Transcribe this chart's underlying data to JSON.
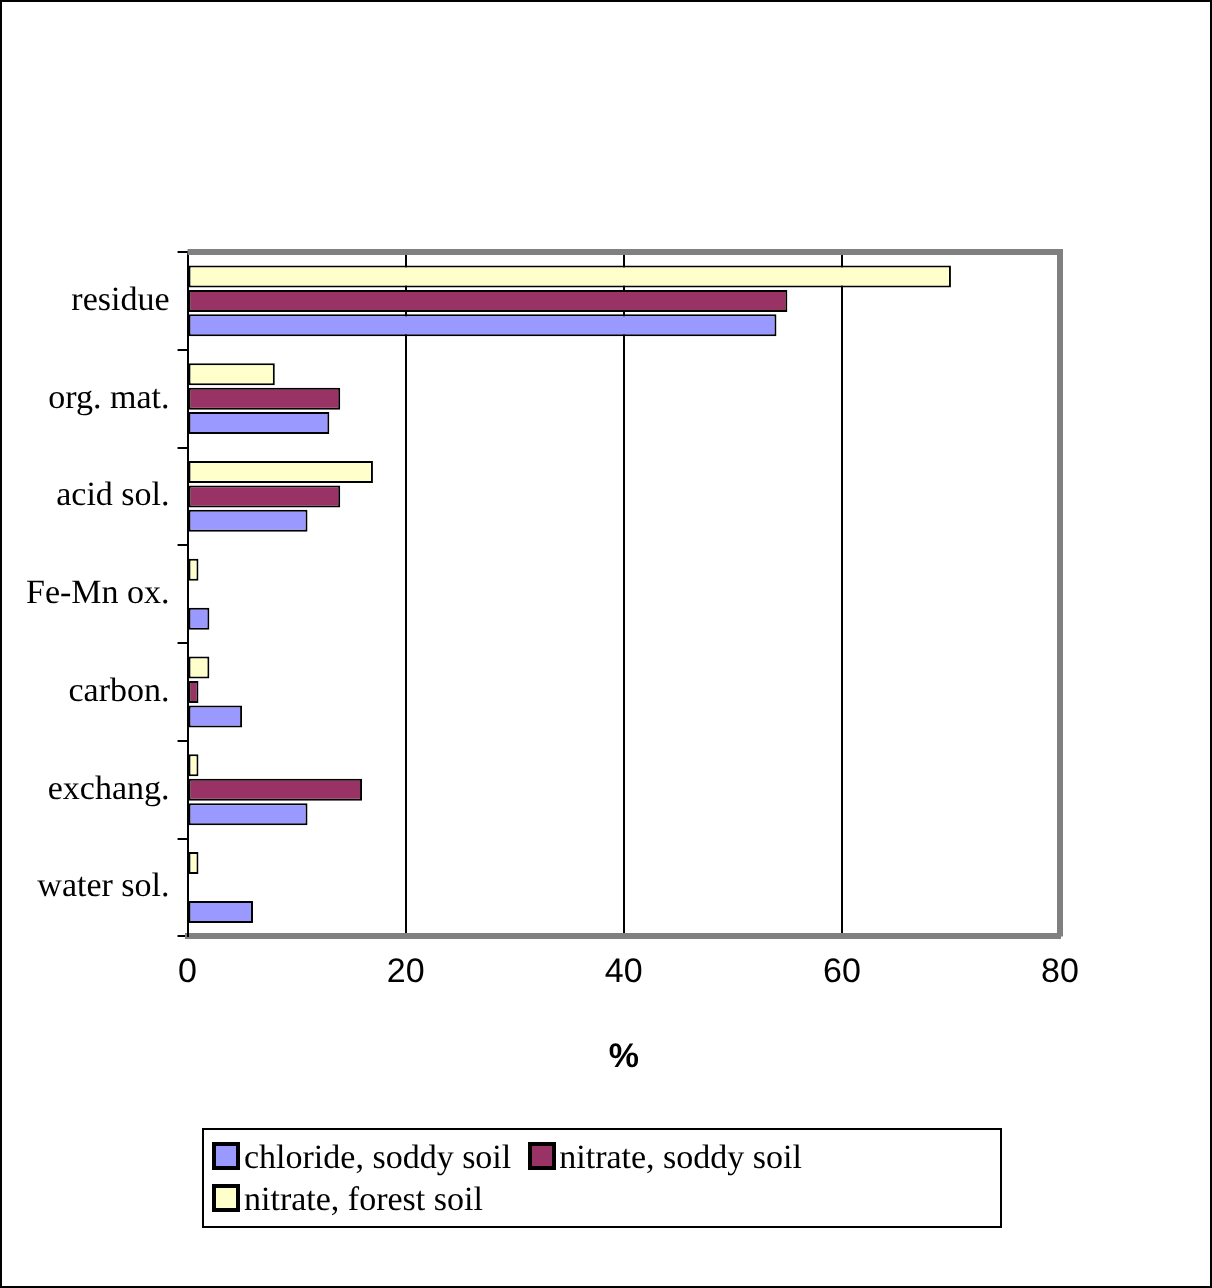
{
  "chart_data": {
    "type": "bar",
    "orientation": "horizontal",
    "xlabel": "%",
    "categories": [
      "residue",
      "org. mat.",
      "acid sol.",
      "Fe-Mn ox.",
      "carbon.",
      "exchang.",
      "water sol."
    ],
    "series": [
      {
        "name": "chloride, soddy soil",
        "color": "#9999ff",
        "values": [
          54,
          13,
          11,
          2,
          5,
          11,
          6
        ]
      },
      {
        "name": "nitrate, soddy soil",
        "color": "#993366",
        "values": [
          55,
          14,
          14,
          0,
          1,
          16,
          0
        ]
      },
      {
        "name": "nitrate, forest soil",
        "color": "#ffffcc",
        "values": [
          70,
          8,
          17,
          1,
          2,
          1,
          1
        ]
      }
    ],
    "xlim": [
      0,
      80
    ],
    "xticks": [
      0,
      20,
      40,
      60,
      80
    ],
    "grid": "x",
    "legend": "bottom"
  }
}
